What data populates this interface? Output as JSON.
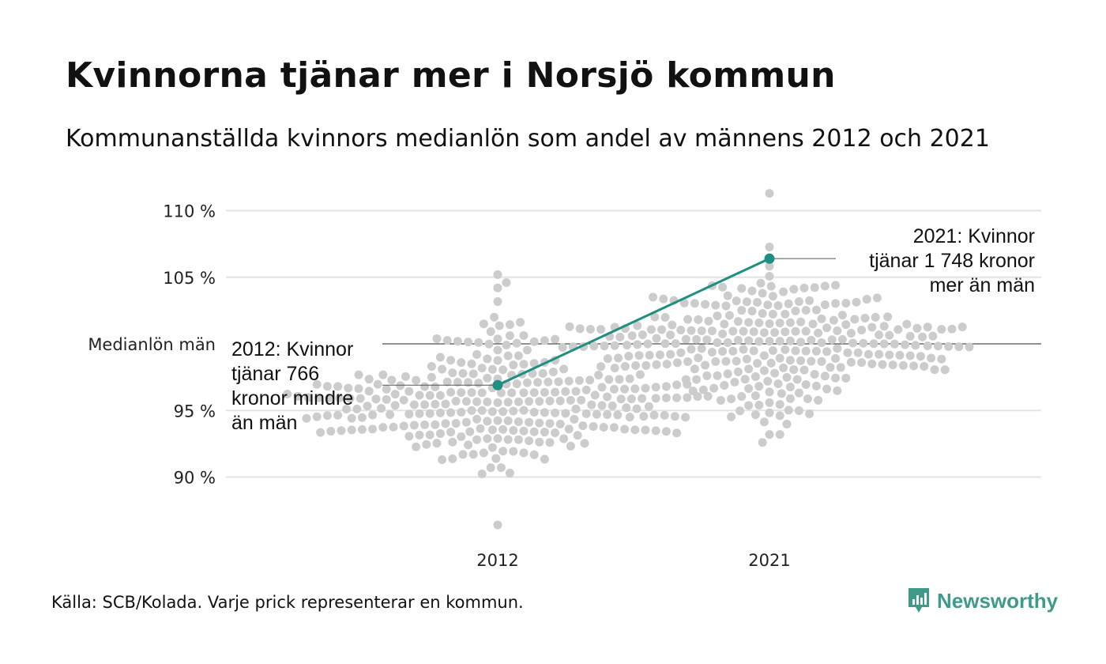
{
  "title": "Kvinnorna tjänar mer i Norsjö kommun",
  "subtitle": "Kommunanställda kvinnors medianlön som andel av männens 2012 och 2021",
  "source": "Källa: SCB/Kolada. Varje prick representerar en kommun.",
  "brand": "Newsworthy",
  "colors": {
    "dots": "#cccccc",
    "highlight": "#1e8f80",
    "grid": "#e3e3e3",
    "reference": "#222222",
    "brand": "#3f9a8a"
  },
  "chart_data": {
    "type": "scatter",
    "categories": [
      "2012",
      "2021"
    ],
    "y_ticks": [
      {
        "value": 90,
        "label": "90 %"
      },
      {
        "value": 95,
        "label": "95 %"
      },
      {
        "value": 105,
        "label": "105 %"
      },
      {
        "value": 110,
        "label": "110 %"
      }
    ],
    "reference_line": {
      "value": 100,
      "label": "Medianlön män"
    },
    "ylim": [
      86,
      112
    ],
    "grid": true,
    "distributions": [
      {
        "category": "2012",
        "median": 95.6,
        "spread": 2.6,
        "min": 86.4,
        "max": 105.2,
        "count": 290
      },
      {
        "category": "2021",
        "median": 100.2,
        "spread": 2.3,
        "min": 92.6,
        "max": 111.3,
        "count": 290
      }
    ],
    "highlight": {
      "name": "Norsjö",
      "points": [
        {
          "x": "2012",
          "y": 96.9
        },
        {
          "x": "2021",
          "y": 106.4
        }
      ]
    },
    "annotations": [
      {
        "x": "2012",
        "lines": [
          "2012: Kvinnor",
          "tjänar 766",
          "kronor mindre",
          "än män"
        ]
      },
      {
        "x": "2021",
        "lines": [
          "2021: Kvinnor",
          "tjänar 1 748 kronor",
          "mer än män"
        ]
      }
    ]
  }
}
